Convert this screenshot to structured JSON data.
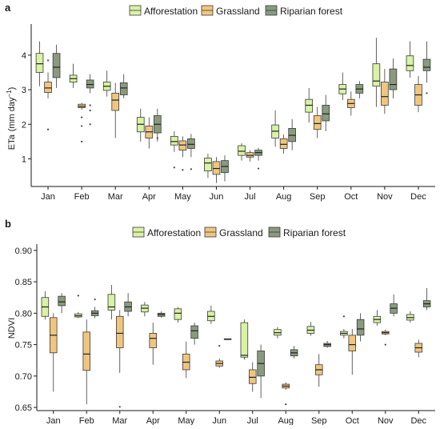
{
  "colors": {
    "afforestation": "#d9f2a5",
    "grassland": "#f0c67f",
    "riparian_forest": "#8a9a7e",
    "stroke": "#3a3a3a"
  },
  "chart_data": [
    {
      "panel_label": "a",
      "type": "box",
      "ylabel_main": "ETa",
      "ylabel_unit": "(mm day",
      "ylabel_exp": "−1",
      "ylabel_close": ")",
      "ylim": [
        0.2,
        4.9
      ],
      "yticks": [
        1,
        2,
        3,
        4
      ],
      "ytick_labels": [
        "1",
        "2",
        "3",
        "4"
      ],
      "grid": false,
      "legend_position": "top",
      "categories": [
        "Jan",
        "Feb",
        "Mar",
        "Apr",
        "May",
        "Jun",
        "Jul",
        "Aug",
        "Sep",
        "Oct",
        "Nov",
        "Dec"
      ],
      "series": [
        {
          "name": "Afforestation",
          "color_key": "afforestation",
          "boxes": [
            {
              "min": 3.1,
              "q1": 3.5,
              "median": 3.75,
              "q3": 4.05,
              "max": 4.4,
              "outliers": []
            },
            {
              "min": 3.05,
              "q1": 3.22,
              "median": 3.32,
              "q3": 3.42,
              "max": 3.75,
              "outliers": []
            },
            {
              "min": 2.8,
              "q1": 2.98,
              "median": 3.1,
              "q3": 3.22,
              "max": 3.55,
              "outliers": []
            },
            {
              "min": 1.5,
              "q1": 1.78,
              "median": 2.0,
              "q3": 2.2,
              "max": 2.45,
              "outliers": []
            },
            {
              "min": 1.2,
              "q1": 1.4,
              "median": 1.5,
              "q3": 1.65,
              "max": 1.8,
              "outliers": [
                0.75
              ]
            },
            {
              "min": 0.45,
              "q1": 0.65,
              "median": 0.88,
              "q3": 1.02,
              "max": 1.15,
              "outliers": []
            },
            {
              "min": 0.95,
              "q1": 1.1,
              "median": 1.22,
              "q3": 1.38,
              "max": 1.45,
              "outliers": []
            },
            {
              "min": 1.35,
              "q1": 1.6,
              "median": 1.8,
              "q3": 1.98,
              "max": 2.4,
              "outliers": []
            },
            {
              "min": 2.05,
              "q1": 2.35,
              "median": 2.55,
              "q3": 2.72,
              "max": 3.05,
              "outliers": []
            },
            {
              "min": 2.7,
              "q1": 2.88,
              "median": 3.02,
              "q3": 3.15,
              "max": 3.5,
              "outliers": []
            },
            {
              "min": 2.5,
              "q1": 3.1,
              "median": 3.25,
              "q3": 3.75,
              "max": 4.5,
              "outliers": []
            },
            {
              "min": 3.35,
              "q1": 3.55,
              "median": 3.7,
              "q3": 3.98,
              "max": 4.4,
              "outliers": []
            }
          ]
        },
        {
          "name": "Grassland",
          "color_key": "grassland",
          "boxes": [
            {
              "min": 2.75,
              "q1": 2.92,
              "median": 3.05,
              "q3": 3.22,
              "max": 3.5,
              "outliers": [
                1.85,
                3.85
              ]
            },
            {
              "min": 2.42,
              "q1": 2.48,
              "median": 2.52,
              "q3": 2.58,
              "max": 2.62,
              "outliers": [
                1.5,
                1.95,
                2.2
              ]
            },
            {
              "min": 1.6,
              "q1": 2.4,
              "median": 2.7,
              "q3": 2.9,
              "max": 3.2,
              "outliers": []
            },
            {
              "min": 1.3,
              "q1": 1.6,
              "median": 1.78,
              "q3": 1.95,
              "max": 2.2,
              "outliers": []
            },
            {
              "min": 1.05,
              "q1": 1.25,
              "median": 1.4,
              "q3": 1.52,
              "max": 1.65,
              "outliers": [
                0.68
              ]
            },
            {
              "min": 0.3,
              "q1": 0.55,
              "median": 0.72,
              "q3": 0.92,
              "max": 1.05,
              "outliers": []
            },
            {
              "min": 0.92,
              "q1": 1.05,
              "median": 1.1,
              "q3": 1.18,
              "max": 1.25,
              "outliers": []
            },
            {
              "min": 1.15,
              "q1": 1.3,
              "median": 1.42,
              "q3": 1.58,
              "max": 1.7,
              "outliers": []
            },
            {
              "min": 1.6,
              "q1": 1.85,
              "median": 2.02,
              "q3": 2.25,
              "max": 2.5,
              "outliers": []
            },
            {
              "min": 2.25,
              "q1": 2.48,
              "median": 2.6,
              "q3": 2.72,
              "max": 2.95,
              "outliers": []
            },
            {
              "min": 2.3,
              "q1": 2.55,
              "median": 2.8,
              "q3": 3.22,
              "max": 3.6,
              "outliers": []
            },
            {
              "min": 2.35,
              "q1": 2.55,
              "median": 2.85,
              "q3": 3.15,
              "max": 3.4,
              "outliers": []
            }
          ]
        },
        {
          "name": "Riparian forest",
          "color_key": "riparian_forest",
          "boxes": [
            {
              "min": 3.05,
              "q1": 3.35,
              "median": 3.65,
              "q3": 4.05,
              "max": 4.3,
              "outliers": []
            },
            {
              "min": 2.9,
              "q1": 3.05,
              "median": 3.15,
              "q3": 3.28,
              "max": 3.45,
              "outliers": [
                2.0,
                2.4,
                2.55
              ]
            },
            {
              "min": 2.75,
              "q1": 2.85,
              "median": 3.05,
              "q3": 3.2,
              "max": 3.45,
              "outliers": []
            },
            {
              "min": 1.5,
              "q1": 1.75,
              "median": 2.0,
              "q3": 2.25,
              "max": 2.45,
              "outliers": [
                1.6
              ]
            },
            {
              "min": 1.05,
              "q1": 1.3,
              "median": 1.42,
              "q3": 1.58,
              "max": 1.72,
              "outliers": [
                0.7
              ]
            },
            {
              "min": 0.35,
              "q1": 0.6,
              "median": 0.78,
              "q3": 0.95,
              "max": 1.1,
              "outliers": []
            },
            {
              "min": 0.95,
              "q1": 1.1,
              "median": 1.18,
              "q3": 1.25,
              "max": 1.32,
              "outliers": [
                0.72
              ]
            },
            {
              "min": 1.25,
              "q1": 1.5,
              "median": 1.68,
              "q3": 1.88,
              "max": 2.15,
              "outliers": []
            },
            {
              "min": 1.8,
              "q1": 2.1,
              "median": 2.3,
              "q3": 2.55,
              "max": 2.85,
              "outliers": []
            },
            {
              "min": 2.75,
              "q1": 2.9,
              "median": 3.02,
              "q3": 3.15,
              "max": 3.25,
              "outliers": []
            },
            {
              "min": 2.75,
              "q1": 3.0,
              "median": 3.15,
              "q3": 3.6,
              "max": 3.9,
              "outliers": []
            },
            {
              "min": 3.2,
              "q1": 3.55,
              "median": 3.65,
              "q3": 3.88,
              "max": 4.4,
              "outliers": [
                2.9
              ]
            }
          ]
        }
      ]
    },
    {
      "panel_label": "b",
      "type": "box",
      "ylabel_main": "NDVI",
      "ylim": [
        0.645,
        0.91
      ],
      "yticks": [
        0.65,
        0.7,
        0.75,
        0.8,
        0.85,
        0.9
      ],
      "ytick_labels": [
        "0.65",
        "0.70",
        "0.75",
        "0.80",
        "0.85",
        "0.90"
      ],
      "grid": false,
      "legend_position": "top",
      "categories": [
        "Jan",
        "Feb",
        "Mar",
        "Apr",
        "May",
        "Jun",
        "Jul",
        "Aug",
        "Sep",
        "Oct",
        "Nov",
        "Dec"
      ],
      "series": [
        {
          "name": "Afforestation",
          "color_key": "afforestation",
          "boxes": [
            {
              "min": 0.79,
              "q1": 0.795,
              "median": 0.81,
              "q3": 0.825,
              "max": 0.835,
              "outliers": []
            },
            {
              "min": 0.792,
              "q1": 0.794,
              "median": 0.796,
              "q3": 0.799,
              "max": 0.802,
              "outliers": [
                0.828
              ]
            },
            {
              "min": 0.79,
              "q1": 0.805,
              "median": 0.81,
              "q3": 0.83,
              "max": 0.845,
              "outliers": []
            },
            {
              "min": 0.795,
              "q1": 0.802,
              "median": 0.808,
              "q3": 0.813,
              "max": 0.818,
              "outliers": []
            },
            {
              "min": 0.785,
              "q1": 0.79,
              "median": 0.8,
              "q3": 0.807,
              "max": 0.81,
              "outliers": []
            },
            {
              "min": 0.783,
              "q1": 0.788,
              "median": 0.795,
              "q3": 0.803,
              "max": 0.812,
              "outliers": []
            },
            {
              "min": 0.726,
              "q1": 0.73,
              "median": 0.733,
              "q3": 0.785,
              "max": 0.79,
              "outliers": []
            },
            {
              "min": 0.76,
              "q1": 0.765,
              "median": 0.769,
              "q3": 0.774,
              "max": 0.778,
              "outliers": []
            },
            {
              "min": 0.764,
              "q1": 0.768,
              "median": 0.773,
              "q3": 0.779,
              "max": 0.786,
              "outliers": []
            },
            {
              "min": 0.76,
              "q1": 0.765,
              "median": 0.768,
              "q3": 0.771,
              "max": 0.775,
              "outliers": [
                0.795
              ]
            },
            {
              "min": 0.78,
              "q1": 0.785,
              "median": 0.79,
              "q3": 0.795,
              "max": 0.805,
              "outliers": []
            },
            {
              "min": 0.785,
              "q1": 0.789,
              "median": 0.793,
              "q3": 0.798,
              "max": 0.803,
              "outliers": []
            }
          ]
        },
        {
          "name": "Grassland",
          "color_key": "grassland",
          "boxes": [
            {
              "min": 0.675,
              "q1": 0.737,
              "median": 0.765,
              "q3": 0.793,
              "max": 0.8,
              "outliers": []
            },
            {
              "min": 0.655,
              "q1": 0.709,
              "median": 0.735,
              "q3": 0.77,
              "max": 0.79,
              "outliers": []
            },
            {
              "min": 0.705,
              "q1": 0.745,
              "median": 0.768,
              "q3": 0.795,
              "max": 0.805,
              "outliers": [
                0.651
              ]
            },
            {
              "min": 0.718,
              "q1": 0.745,
              "median": 0.76,
              "q3": 0.768,
              "max": 0.785,
              "outliers": []
            },
            {
              "min": 0.697,
              "q1": 0.71,
              "median": 0.722,
              "q3": 0.735,
              "max": 0.755,
              "outliers": []
            },
            {
              "min": 0.713,
              "q1": 0.716,
              "median": 0.72,
              "q3": 0.724,
              "max": 0.728,
              "outliers": [
                0.748
              ]
            },
            {
              "min": 0.675,
              "q1": 0.688,
              "median": 0.698,
              "q3": 0.71,
              "max": 0.722,
              "outliers": []
            },
            {
              "min": 0.678,
              "q1": 0.681,
              "median": 0.684,
              "q3": 0.687,
              "max": 0.69,
              "outliers": [
                0.655
              ]
            },
            {
              "min": 0.683,
              "q1": 0.702,
              "median": 0.71,
              "q3": 0.718,
              "max": 0.735,
              "outliers": []
            },
            {
              "min": 0.702,
              "q1": 0.74,
              "median": 0.75,
              "q3": 0.765,
              "max": 0.775,
              "outliers": []
            },
            {
              "min": 0.765,
              "q1": 0.767,
              "median": 0.769,
              "q3": 0.771,
              "max": 0.774,
              "outliers": [
                0.75
              ]
            },
            {
              "min": 0.73,
              "q1": 0.738,
              "median": 0.745,
              "q3": 0.752,
              "max": 0.758,
              "outliers": []
            }
          ]
        },
        {
          "name": "Riparian forest",
          "color_key": "riparian_forest",
          "boxes": [
            {
              "min": 0.8,
              "q1": 0.812,
              "median": 0.818,
              "q3": 0.827,
              "max": 0.832,
              "outliers": []
            },
            {
              "min": 0.792,
              "q1": 0.796,
              "median": 0.8,
              "q3": 0.804,
              "max": 0.81,
              "outliers": [
                0.822
              ]
            },
            {
              "min": 0.795,
              "q1": 0.803,
              "median": 0.81,
              "q3": 0.818,
              "max": 0.832,
              "outliers": []
            },
            {
              "min": 0.793,
              "q1": 0.795,
              "median": 0.798,
              "q3": 0.8,
              "max": 0.803,
              "outliers": []
            },
            {
              "min": 0.75,
              "q1": 0.76,
              "median": 0.772,
              "q3": 0.78,
              "max": 0.785,
              "outliers": []
            },
            {
              "min": 0.759,
              "q1": 0.759,
              "median": 0.759,
              "q3": 0.759,
              "max": 0.759,
              "outliers": []
            },
            {
              "min": 0.665,
              "q1": 0.7,
              "median": 0.72,
              "q3": 0.74,
              "max": 0.75,
              "outliers": []
            },
            {
              "min": 0.728,
              "q1": 0.732,
              "median": 0.737,
              "q3": 0.742,
              "max": 0.748,
              "outliers": []
            },
            {
              "min": 0.745,
              "q1": 0.747,
              "median": 0.75,
              "q3": 0.752,
              "max": 0.756,
              "outliers": []
            },
            {
              "min": 0.755,
              "q1": 0.765,
              "median": 0.775,
              "q3": 0.79,
              "max": 0.8,
              "outliers": []
            },
            {
              "min": 0.795,
              "q1": 0.8,
              "median": 0.808,
              "q3": 0.815,
              "max": 0.83,
              "outliers": []
            },
            {
              "min": 0.805,
              "q1": 0.81,
              "median": 0.815,
              "q3": 0.82,
              "max": 0.84,
              "outliers": []
            }
          ]
        }
      ]
    }
  ]
}
